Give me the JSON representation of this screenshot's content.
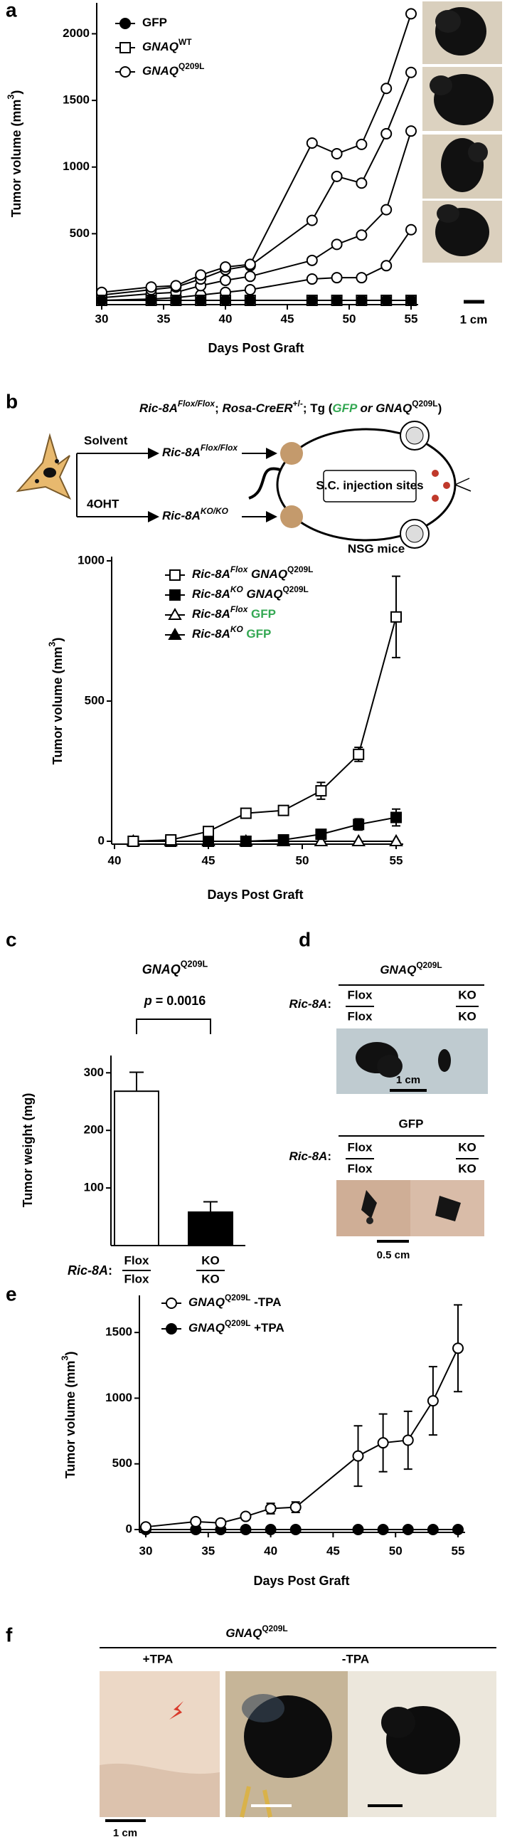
{
  "figure": {
    "panel_labels": [
      "a",
      "b",
      "c",
      "d",
      "e",
      "f"
    ]
  },
  "panel_a_photos": {
    "scale_label": "1 cm"
  },
  "panel_b_scheme": {
    "title": [
      {
        "text": "Ric-8A",
        "style": "italic"
      },
      {
        "text": "Flox/Flox",
        "style": "sup-italic"
      },
      {
        "text": "; "
      },
      {
        "text": "Rosa-CreER",
        "style": "italic"
      },
      {
        "text": "+/-",
        "style": "sup"
      },
      {
        "text": "; Tg ("
      },
      {
        "text": "GFP",
        "style": "green-italic"
      },
      {
        "text": " or ",
        "style": "italic"
      },
      {
        "text": "GNAQ",
        "style": "italic"
      },
      {
        "text": "Q209L",
        "style": "sup"
      },
      {
        "text": ")"
      }
    ],
    "treatments": [
      "Solvent",
      "4OHT"
    ],
    "genotypes": [
      [
        {
          "text": "Ric-8A",
          "style": "italic"
        },
        {
          "text": "Flox/Flox",
          "style": "sup-italic"
        }
      ],
      [
        {
          "text": "Ric-8A",
          "style": "italic"
        },
        {
          "text": "KO/KO",
          "style": "sup-italic"
        }
      ]
    ],
    "injection_label": "S.C. injection sites",
    "host": "NSG mice"
  },
  "chart_data": [
    {
      "type": "line",
      "x_label": "Days Post Graft",
      "y_label": [
        {
          "text": "Tumor volume (mm"
        },
        {
          "text": "3",
          "style": "sup"
        },
        {
          "text": ")"
        }
      ],
      "x": [
        30,
        34,
        36,
        38,
        40,
        42,
        47,
        49,
        51,
        53,
        55
      ],
      "xlim": [
        30,
        55
      ],
      "xticks": [
        30,
        35,
        40,
        45,
        50,
        55
      ],
      "ylim": [
        0,
        2200
      ],
      "yticks": [
        500,
        1000,
        1500,
        2000
      ],
      "legend": "upper left",
      "series": [
        {
          "name": [
            {
              "text": "GFP"
            }
          ],
          "marker": "circle-filled",
          "color": "#000000",
          "values": [
            0,
            0,
            0,
            0,
            0,
            0,
            0,
            0,
            0,
            0,
            0
          ]
        },
        {
          "name": [
            {
              "text": "GNAQ",
              "style": "italic"
            },
            {
              "text": "WT",
              "style": "sup"
            }
          ],
          "marker": "square-open",
          "color": "#000000",
          "values": [
            0,
            0,
            0,
            0,
            0,
            0,
            0,
            0,
            0,
            0,
            0
          ]
        },
        {
          "name": [
            {
              "text": "GNAQ",
              "style": "italic"
            },
            {
              "text": "Q209L",
              "style": "sup"
            }
          ],
          "marker": "circle-open",
          "color": "#000000",
          "values": [
            60,
            100,
            110,
            190,
            250,
            270,
            1180,
            1100,
            1170,
            1590,
            2150
          ]
        },
        {
          "marker": "circle-open",
          "color": "#000000",
          "values": [
            40,
            80,
            100,
            160,
            230,
            260,
            600,
            930,
            880,
            1250,
            1710
          ]
        },
        {
          "marker": "circle-open",
          "color": "#000000",
          "values": [
            20,
            50,
            60,
            110,
            150,
            180,
            300,
            420,
            490,
            680,
            1270
          ]
        },
        {
          "marker": "circle-open",
          "color": "#000000",
          "values": [
            0,
            10,
            20,
            40,
            60,
            80,
            160,
            170,
            170,
            260,
            530
          ]
        }
      ]
    },
    {
      "type": "line",
      "x_label": "Days Post Graft",
      "y_label": [
        {
          "text": "Tumor volume (mm"
        },
        {
          "text": "3",
          "style": "sup"
        },
        {
          "text": ")"
        }
      ],
      "x": [
        41,
        43,
        45,
        47,
        49,
        51,
        53,
        55
      ],
      "xlim": [
        40,
        55
      ],
      "xticks": [
        40,
        45,
        50,
        55
      ],
      "ylim": [
        0,
        1000
      ],
      "yticks": [
        0,
        500,
        1000
      ],
      "legend": "upper left",
      "series": [
        {
          "name": [
            {
              "text": "Ric-8A",
              "style": "italic"
            },
            {
              "text": "Flox",
              "style": "sup-italic"
            },
            {
              "text": " "
            },
            {
              "text": "GNAQ",
              "style": "italic"
            },
            {
              "text": "Q209L",
              "style": "sup"
            }
          ],
          "marker": "square-open",
          "color": "#000000",
          "values": [
            0,
            5,
            35,
            100,
            110,
            180,
            310,
            800
          ],
          "errors": [
            0,
            3,
            8,
            10,
            12,
            30,
            25,
            145
          ]
        },
        {
          "name": [
            {
              "text": "Ric-8A",
              "style": "italic"
            },
            {
              "text": "KO",
              "style": "sup-italic"
            },
            {
              "text": " "
            },
            {
              "text": "GNAQ",
              "style": "italic"
            },
            {
              "text": "Q209L",
              "style": "sup"
            }
          ],
          "marker": "square-filled",
          "color": "#000000",
          "values": [
            0,
            0,
            0,
            0,
            5,
            25,
            60,
            85
          ],
          "errors": [
            0,
            0,
            0,
            0,
            3,
            8,
            20,
            30
          ]
        },
        {
          "name": [
            {
              "text": "Ric-8A",
              "style": "italic"
            },
            {
              "text": "Flox",
              "style": "sup-italic"
            },
            {
              "text": " GFP",
              "style": "green"
            }
          ],
          "marker": "triangle-open",
          "color": "#000000",
          "values": [
            0,
            0,
            0,
            0,
            0,
            0,
            0,
            0
          ],
          "errors": [
            0,
            0,
            0,
            0,
            0,
            0,
            0,
            0
          ]
        },
        {
          "name": [
            {
              "text": "Ric-8A",
              "style": "italic"
            },
            {
              "text": "KO",
              "style": "sup-italic"
            },
            {
              "text": " GFP",
              "style": "green"
            }
          ],
          "marker": "triangle-filled",
          "color": "#000000",
          "values": [
            0,
            0,
            0,
            0,
            0,
            0,
            0,
            0
          ],
          "errors": [
            0,
            0,
            0,
            0,
            0,
            0,
            0,
            0
          ]
        }
      ]
    },
    {
      "type": "bar",
      "title": [
        {
          "text": "GNAQ",
          "style": "italic"
        },
        {
          "text": "Q209L",
          "style": "sup"
        }
      ],
      "annotation": [
        {
          "text": "p",
          "style": "italic"
        },
        {
          "text": " = 0.0016"
        }
      ],
      "y_label": "Tumor weight  (mg)",
      "x_label": [
        {
          "text": "Ric-8A",
          "style": "italic"
        },
        {
          "text": ":"
        }
      ],
      "categories": [
        [
          "Flox",
          "Flox"
        ],
        [
          "KO",
          "KO"
        ]
      ],
      "values": [
        268,
        58
      ],
      "errors": [
        33,
        18
      ],
      "colors": [
        "#ffffff",
        "#000000"
      ],
      "ylim": [
        0,
        330
      ],
      "yticks": [
        100,
        200,
        300
      ]
    },
    {
      "type": "line",
      "x_label": "Days Post Graft",
      "y_label": [
        {
          "text": "Tumor volume (mm"
        },
        {
          "text": "3",
          "style": "sup"
        },
        {
          "text": ")"
        }
      ],
      "x": [
        30,
        34,
        36,
        38,
        40,
        42,
        47,
        49,
        51,
        53,
        55
      ],
      "xlim": [
        30,
        55
      ],
      "xticks": [
        30,
        35,
        40,
        45,
        50,
        55
      ],
      "ylim": [
        0,
        1750
      ],
      "yticks": [
        0,
        500,
        1000,
        1500
      ],
      "legend": "upper left",
      "series": [
        {
          "name": [
            {
              "text": "GNAQ",
              "style": "italic"
            },
            {
              "text": "Q209L",
              "style": "sup"
            },
            {
              "text": " -TPA"
            }
          ],
          "marker": "circle-open",
          "color": "#000000",
          "values": [
            20,
            60,
            50,
            100,
            160,
            170,
            560,
            660,
            680,
            980,
            1380
          ],
          "errors": [
            0,
            0,
            0,
            0,
            40,
            40,
            230,
            220,
            220,
            260,
            330
          ]
        },
        {
          "name": [
            {
              "text": "GNAQ",
              "style": "italic"
            },
            {
              "text": "Q209L",
              "style": "sup"
            },
            {
              "text": " +TPA"
            }
          ],
          "marker": "circle-filled",
          "color": "#000000",
          "values": [
            0,
            0,
            0,
            0,
            0,
            0,
            0,
            0,
            0,
            0,
            0
          ],
          "errors": [
            0,
            0,
            0,
            0,
            0,
            0,
            0,
            0,
            0,
            0,
            0
          ]
        }
      ]
    }
  ],
  "panel_d": {
    "title": [
      {
        "text": "GNAQ",
        "style": "italic"
      },
      {
        "text": "Q209L",
        "style": "sup"
      }
    ],
    "row_label": [
      {
        "text": "Ric-8A",
        "style": "italic"
      },
      {
        "text": ":"
      }
    ],
    "genotype_columns": [
      [
        "Flox",
        "Flox"
      ],
      [
        "KO",
        "KO"
      ]
    ],
    "scale_label": "1 cm",
    "control_title": "GFP",
    "control_row_label": [
      {
        "text": "Ric-8A",
        "style": "italic"
      },
      {
        "text": ":"
      }
    ],
    "control_columns": [
      [
        "Flox",
        "Flox"
      ],
      [
        "KO",
        "KO"
      ]
    ],
    "control_scale_label": "0.5 cm"
  },
  "panel_f": {
    "title": [
      {
        "text": "GNAQ",
        "style": "italic"
      },
      {
        "text": "Q209L",
        "style": "sup"
      }
    ],
    "groups": [
      "+TPA",
      "-TPA"
    ],
    "scale_label": "1 cm"
  }
}
